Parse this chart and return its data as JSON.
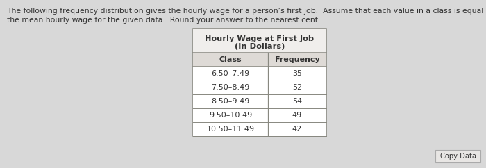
{
  "title_line1": "Hourly Wage at First Job",
  "title_line2": "(In Dollars)",
  "col_headers": [
    "Class",
    "Frequency"
  ],
  "rows": [
    [
      "6.50–7.49",
      "35"
    ],
    [
      "7.50–8.49",
      "52"
    ],
    [
      "8.50–9.49",
      "54"
    ],
    [
      "9.50–10.49",
      "49"
    ],
    [
      "10.50–11.49",
      "42"
    ]
  ],
  "description_line1": "The following frequency distribution gives the hourly wage for a person’s first job.  Assume that each value in a class is equal to the midpoint of the class.  Estimate",
  "description_line2": "the mean hourly wage for the given data.  Round your answer to the nearest cent.",
  "copy_data_label": "Copy Data",
  "bg_color": "#d8d8d8",
  "table_bg": "#ffffff",
  "header_area_bg": "#f0eeec",
  "col_header_bg": "#dedad6",
  "border_color": "#888880",
  "text_color": "#333333",
  "desc_fontsize": 7.8,
  "title_fontsize": 8.2,
  "table_fontsize": 8.0,
  "copy_btn_color": "#e8e6e4",
  "copy_btn_border": "#aaaaaa"
}
